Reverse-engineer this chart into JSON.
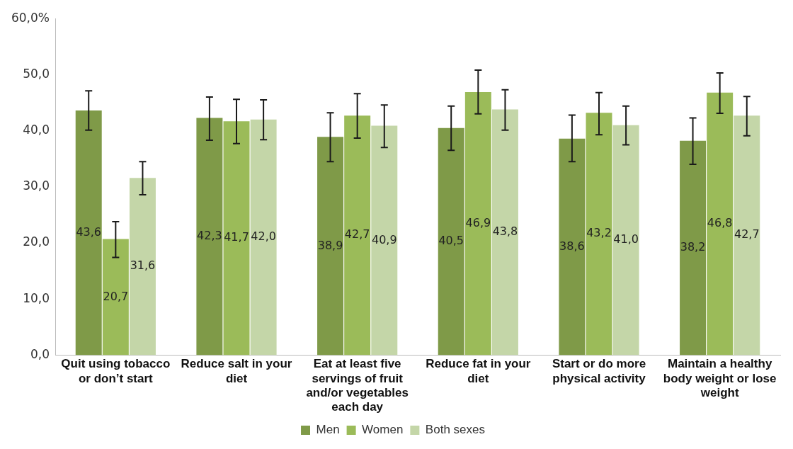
{
  "chart_data": {
    "type": "bar",
    "categories": [
      "Quit using tobacco or don’t start",
      "Reduce salt in your diet",
      "Eat at least five servings of fruit and/or vegetables each day",
      "Reduce fat in your diet",
      "Start or do more physical activity",
      "Maintain a healthy body weight or lose weight"
    ],
    "series": [
      {
        "name": "Men",
        "color": "#7f9a48",
        "values": [
          43.6,
          42.3,
          38.9,
          40.5,
          38.6,
          38.2
        ],
        "value_labels": [
          "43,6",
          "42,3",
          "38,9",
          "40,5",
          "38,6",
          "38,2"
        ],
        "errors": [
          [
            40.1,
            47.1
          ],
          [
            38.3,
            46.0
          ],
          [
            34.5,
            43.2
          ],
          [
            36.5,
            44.4
          ],
          [
            34.5,
            42.8
          ],
          [
            34.0,
            42.3
          ]
        ]
      },
      {
        "name": "Women",
        "color": "#9bbb59",
        "values": [
          20.7,
          41.7,
          42.7,
          46.9,
          43.2,
          46.8
        ],
        "value_labels": [
          "20,7",
          "41,7",
          "42,7",
          "46,9",
          "43,2",
          "46,8"
        ],
        "errors": [
          [
            17.4,
            23.8
          ],
          [
            37.7,
            45.6
          ],
          [
            38.7,
            46.6
          ],
          [
            43.0,
            50.8
          ],
          [
            39.3,
            46.8
          ],
          [
            43.1,
            50.3
          ]
        ]
      },
      {
        "name": "Both sexes",
        "color": "#c4d6a8",
        "values": [
          31.6,
          42.0,
          40.9,
          43.8,
          41.0,
          42.7
        ],
        "value_labels": [
          "31,6",
          "42,0",
          "40,9",
          "43,8",
          "41,0",
          "42,7"
        ],
        "errors": [
          [
            28.6,
            34.5
          ],
          [
            38.4,
            45.5
          ],
          [
            37.0,
            44.6
          ],
          [
            40.1,
            47.3
          ],
          [
            37.5,
            44.4
          ],
          [
            39.1,
            46.1
          ]
        ]
      }
    ],
    "ylim": [
      0,
      60
    ],
    "yticks": [
      {
        "value": 0,
        "label": "0,0"
      },
      {
        "value": 10,
        "label": "10,0"
      },
      {
        "value": 20,
        "label": "20,0"
      },
      {
        "value": 30,
        "label": "30,0"
      },
      {
        "value": 40,
        "label": "40,0"
      },
      {
        "value": 50,
        "label": "50,0"
      },
      {
        "value": 60,
        "label": "60,0%"
      }
    ],
    "grid": false,
    "legend": "bottom"
  }
}
